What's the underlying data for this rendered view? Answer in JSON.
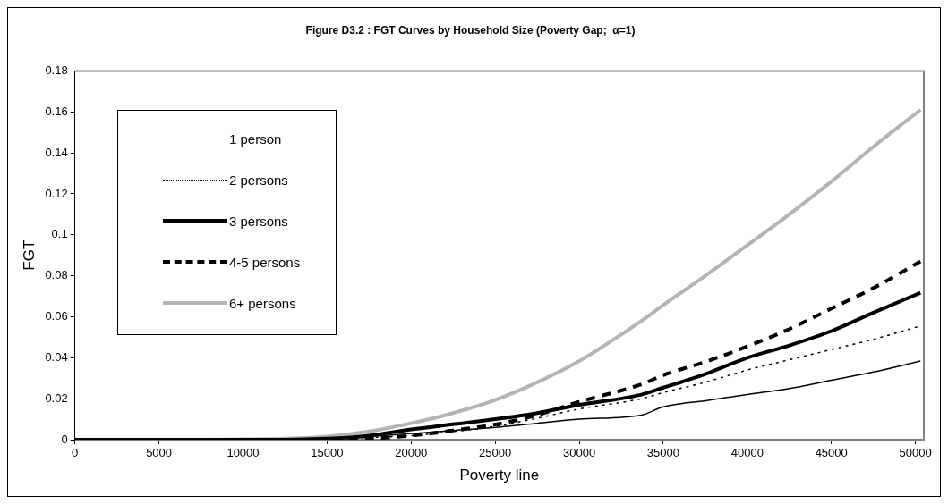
{
  "chart_data": {
    "type": "line",
    "title": "Figure D3.2 : FGT Curves by Household Size (Poverty Gap;  α=1)",
    "xlabel": "Poverty line",
    "ylabel": "FGT",
    "xlim": [
      0,
      50500
    ],
    "xticks": [
      0,
      5000,
      10000,
      15000,
      20000,
      25000,
      30000,
      35000,
      40000,
      45000,
      50000
    ],
    "ylim": [
      0,
      0.18
    ],
    "yticks": [
      0,
      0.02,
      0.04,
      0.06,
      0.08,
      0.1,
      0.12,
      0.14,
      0.16,
      0.18
    ],
    "grid": false,
    "legend": "top left",
    "marker": "none",
    "x": [
      0,
      5000,
      7500,
      10000,
      12500,
      15000,
      17500,
      20000,
      22500,
      25000,
      27500,
      30000,
      33700,
      35000,
      37500,
      40000,
      42500,
      45000,
      47500,
      50300
    ],
    "series": [
      {
        "name": "1 person",
        "color": "#000000",
        "line_style": "solid",
        "values": [
          0,
          0,
          0.0005,
          0.0002,
          0.0002,
          0.0005,
          0.0015,
          0.003,
          0.0045,
          0.006,
          0.008,
          0.01,
          0.012,
          0.016,
          0.019,
          0.022,
          0.025,
          0.029,
          0.033,
          0.0384
        ]
      },
      {
        "name": "2 persons",
        "color": "#000000",
        "line_style": "dotted",
        "values": [
          0,
          0,
          0,
          0,
          0,
          0.0003,
          0.001,
          0.002,
          0.004,
          0.0065,
          0.0105,
          0.015,
          0.02,
          0.023,
          0.028,
          0.034,
          0.039,
          0.044,
          0.049,
          0.0555
        ]
      },
      {
        "name": "3 persons",
        "color": "#000000",
        "line_style": "solid",
        "values": [
          0,
          0,
          0,
          0,
          0,
          0.0005,
          0.002,
          0.005,
          0.0075,
          0.01,
          0.013,
          0.017,
          0.022,
          0.0254,
          0.032,
          0.04,
          0.046,
          0.053,
          0.062,
          0.0717
        ]
      },
      {
        "name": "4-5 persons",
        "color": "#000000",
        "line_style": "dashed",
        "values": [
          0,
          0,
          0,
          0,
          0,
          0,
          0.0005,
          0.002,
          0.0045,
          0.0074,
          0.012,
          0.0185,
          0.027,
          0.0315,
          0.038,
          0.0455,
          0.054,
          0.064,
          0.074,
          0.087
        ]
      },
      {
        "name": "6+ persons",
        "color": "#b4b4b4",
        "line_style": "solid",
        "values": [
          0,
          0,
          0,
          0.0002,
          0.0005,
          0.0015,
          0.004,
          0.008,
          0.013,
          0.0194,
          0.028,
          0.0384,
          0.058,
          0.0657,
          0.08,
          0.0949,
          0.11,
          0.126,
          0.143,
          0.161
        ]
      }
    ]
  }
}
